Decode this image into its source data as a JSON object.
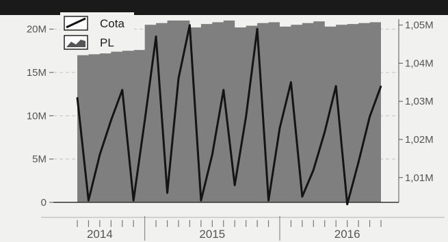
{
  "chart_data": {
    "type": "area",
    "legend": {
      "placement": "top-left",
      "entries": [
        {
          "label": "Cota",
          "icon": "line-legend-icon"
        },
        {
          "label": "PL",
          "icon": "area-legend-icon"
        }
      ]
    },
    "y_left": {
      "ticks": [
        0,
        5000000,
        10000000,
        15000000,
        20000000
      ],
      "tick_labels": [
        "0",
        "5M",
        "10M",
        "15M",
        "20M"
      ],
      "ylim": [
        0,
        21000000
      ]
    },
    "y_right": {
      "ticks": [
        1.01,
        1.02,
        1.03,
        1.04,
        1.05
      ],
      "tick_labels": [
        "1,01M",
        "1,02M",
        "1,03M",
        "1,04M",
        "1,05M"
      ],
      "ylim": [
        1.0035,
        1.0512
      ]
    },
    "x_years": [
      "2014",
      "2015",
      "2016"
    ],
    "xlim": [
      "2014-07",
      "2016-10"
    ],
    "grid": true,
    "colors": {
      "background": "#f1f1ef",
      "area_fill": "#7f7f7f",
      "line": "#141414",
      "banner": "#1a1a1a",
      "axis_text": "#555555"
    },
    "series": [
      {
        "name": "PL",
        "axis": "left",
        "type": "area",
        "x": [
          "2014-07",
          "2014-08",
          "2014-09",
          "2014-10",
          "2014-11",
          "2014-12",
          "2015-01",
          "2015-02",
          "2015-03",
          "2015-04",
          "2015-05",
          "2015-06",
          "2015-07",
          "2015-08",
          "2015-09",
          "2015-10",
          "2015-11",
          "2015-12",
          "2016-01",
          "2016-02",
          "2016-03",
          "2016-04",
          "2016-05",
          "2016-06",
          "2016-07",
          "2016-08",
          "2016-09",
          "2016-10"
        ],
        "values": [
          17000000,
          17100000,
          17200000,
          17400000,
          17500000,
          17600000,
          20500000,
          20700000,
          21000000,
          21000000,
          20200000,
          20600000,
          20800000,
          21000000,
          20200000,
          20400000,
          20700000,
          20800000,
          20300000,
          20500000,
          20700000,
          20900000,
          20300000,
          20500000,
          20600000,
          20700000,
          20800000,
          20800000
        ]
      },
      {
        "name": "Cota",
        "axis": "right",
        "type": "line",
        "x": [
          "2014-07",
          "2014-08",
          "2014-09",
          "2014-10",
          "2014-11",
          "2014-12",
          "2015-01",
          "2015-02",
          "2015-03",
          "2015-04",
          "2015-05",
          "2015-06",
          "2015-07",
          "2015-08",
          "2015-09",
          "2015-10",
          "2015-11",
          "2015-12",
          "2016-01",
          "2016-02",
          "2016-03",
          "2016-04",
          "2016-05",
          "2016-06",
          "2016-07",
          "2016-08",
          "2016-09",
          "2016-10"
        ],
        "values": [
          1.031,
          1.004,
          1.016,
          1.025,
          1.033,
          1.004,
          1.025,
          1.047,
          1.006,
          1.036,
          1.05,
          1.004,
          1.016,
          1.033,
          1.008,
          1.026,
          1.049,
          1.004,
          1.023,
          1.035,
          1.005,
          1.012,
          1.022,
          1.034,
          1.003,
          1.014,
          1.026,
          1.034
        ]
      }
    ]
  }
}
